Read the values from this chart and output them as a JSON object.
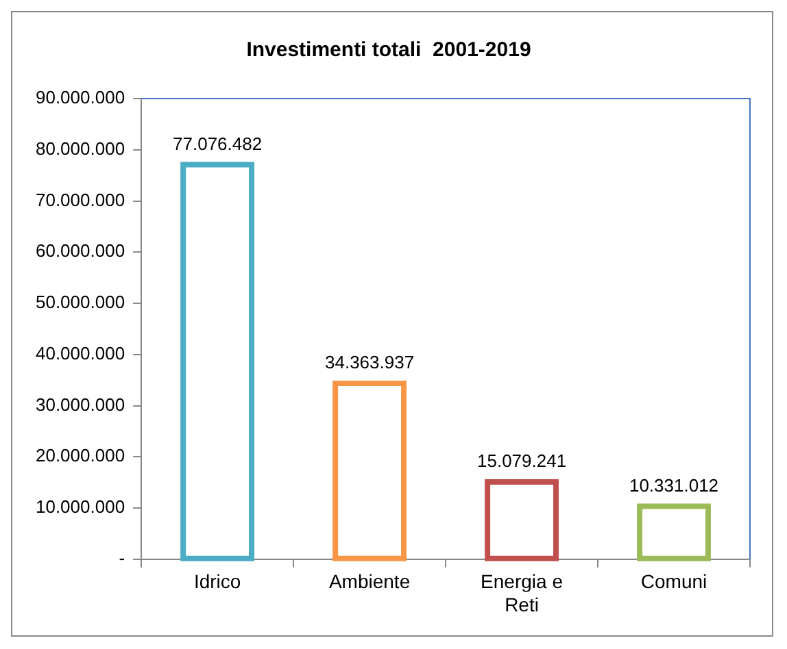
{
  "chart_data": {
    "type": "bar",
    "title": "Investimenti totali  2001-2019",
    "categories": [
      "Idrico",
      "Ambiente",
      "Energia e Reti",
      "Comuni"
    ],
    "values": [
      77076482,
      34363937,
      15079241,
      10331012
    ],
    "colors": [
      "#4bacc6",
      "#f79646",
      "#c0504d",
      "#9bbb59"
    ],
    "ylim": [
      0,
      90000000
    ],
    "yticks": [
      {
        "value": 0,
        "label": "-"
      },
      {
        "value": 10000000,
        "label": "10.000.000"
      },
      {
        "value": 20000000,
        "label": "20.000.000"
      },
      {
        "value": 30000000,
        "label": "30.000.000"
      },
      {
        "value": 40000000,
        "label": "40.000.000"
      },
      {
        "value": 50000000,
        "label": "50.000.000"
      },
      {
        "value": 60000000,
        "label": "60.000.000"
      },
      {
        "value": 70000000,
        "label": "70.000.000"
      },
      {
        "value": 80000000,
        "label": "80.000.000"
      },
      {
        "value": 90000000,
        "label": "90.000.000"
      }
    ],
    "value_labels": [
      "77.076.482",
      "34.363.937",
      "15.079.241",
      "10.331.012"
    ],
    "grid": false,
    "legend": false
  }
}
